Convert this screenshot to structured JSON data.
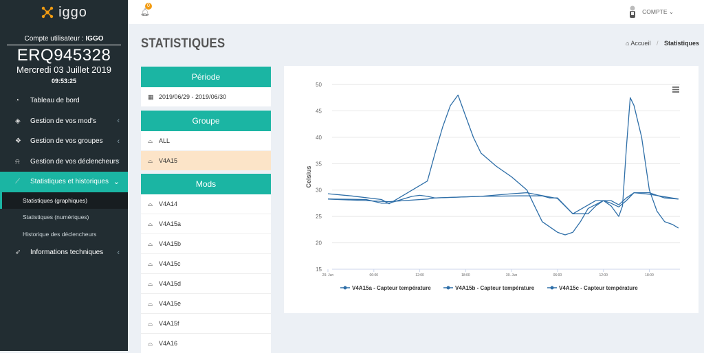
{
  "brand": {
    "name": "iggo"
  },
  "user": {
    "label": "Compte utilisateur : ",
    "name": "IGGO",
    "device": "ERQ945328",
    "date": "Mercredi 03 Juillet 2019",
    "time": "09:53:25"
  },
  "menu": [
    {
      "label": "Tableau de bord",
      "icon": "dashboard-icon"
    },
    {
      "label": "Gestion de vos mod's",
      "icon": "cube-icon"
    },
    {
      "label": "Gestion de vos groupes",
      "icon": "cubes-icon"
    },
    {
      "label": "Gestion de vos déclencheurs",
      "icon": "bell-icon"
    },
    {
      "label": "Statistiques et historiques",
      "icon": "line-chart-icon"
    },
    {
      "label": "Informations techniques",
      "icon": "rocket-icon"
    }
  ],
  "submenu": [
    {
      "label": "Statistiques (graphiques)"
    },
    {
      "label": "Statistiques (numériques)"
    },
    {
      "label": "Historique des déclencheurs"
    }
  ],
  "topbar": {
    "notification_count": "0",
    "account_label": "COMPTE"
  },
  "page": {
    "title": "STATISTIQUES"
  },
  "breadcrumb": {
    "home": "Accueil",
    "current": "Statistiques"
  },
  "periode": {
    "header": "Période",
    "range": "2019/06/29 - 2019/06/30"
  },
  "groupe": {
    "header": "Groupe",
    "items": [
      "ALL",
      "V4A15"
    ]
  },
  "mods": {
    "header": "Mods",
    "items": [
      "V4A14",
      "V4A15a",
      "V4A15b",
      "V4A15c",
      "V4A15d",
      "V4A15e",
      "V4A15f",
      "V4A16"
    ]
  },
  "colors": {
    "accent": "#1bb5a3",
    "sidebar": "#222d32",
    "selected_row": "#fce4c8",
    "series": "#2f6fa8"
  },
  "chart_data": {
    "type": "line",
    "ylabel": "Celsius",
    "ylim": [
      15,
      50
    ],
    "yticks": [
      15,
      20,
      25,
      30,
      35,
      40,
      45,
      50
    ],
    "xlim": [
      0,
      46
    ],
    "xticks": [
      {
        "x": 0,
        "label": "29. Jun"
      },
      {
        "x": 6,
        "label": "06:00"
      },
      {
        "x": 12,
        "label": "12:00"
      },
      {
        "x": 18,
        "label": "18:00"
      },
      {
        "x": 24,
        "label": "30. Jun"
      },
      {
        "x": 30,
        "label": "06:00"
      },
      {
        "x": 36,
        "label": "12:00"
      },
      {
        "x": 42,
        "label": "18:00"
      }
    ],
    "grid": true,
    "legend": "bottom",
    "series": [
      {
        "name": "V4A15a - Capteur température",
        "x": [
          0,
          3,
          7,
          8,
          13,
          14,
          15,
          16,
          17,
          18,
          19,
          20,
          22,
          24,
          26,
          27,
          28,
          30,
          31,
          32,
          33,
          34,
          36,
          37,
          38,
          38.5,
          39,
          39.5,
          40,
          41,
          42,
          43,
          44,
          45,
          45.8
        ],
        "y": [
          29.3,
          28.9,
          28.2,
          27.4,
          31.7,
          37,
          42,
          46,
          48,
          44,
          40,
          37,
          34.5,
          32.5,
          30,
          27,
          24,
          22,
          21.5,
          22,
          24,
          26.5,
          28,
          27,
          25,
          27,
          38,
          47.5,
          46,
          40,
          30,
          26,
          24,
          23.5,
          22.8
        ]
      },
      {
        "name": "V4A15b - Capteur température",
        "x": [
          0,
          5,
          7,
          8,
          11,
          12,
          13,
          14,
          20,
          24,
          26,
          30,
          32,
          34,
          35,
          36,
          37,
          38,
          39,
          40,
          42,
          44,
          45.8
        ],
        "y": [
          28.3,
          28.2,
          27.5,
          27.5,
          28.8,
          29,
          28.8,
          28.5,
          28.8,
          29.3,
          29.5,
          28.4,
          25.5,
          25.5,
          27,
          28,
          27.5,
          26.8,
          28,
          29.5,
          29.5,
          28.5,
          28.3
        ]
      },
      {
        "name": "V4A15c - Capteur température",
        "x": [
          0,
          8,
          13,
          14,
          20,
          25,
          28,
          29,
          30,
          32,
          35,
          37,
          38,
          39,
          40,
          42,
          45.8
        ],
        "y": [
          28.3,
          27.8,
          28.3,
          28.5,
          28.8,
          28.9,
          28.9,
          28.5,
          28.5,
          25.5,
          28,
          28,
          27.2,
          28.5,
          29.5,
          29.2,
          28.3
        ]
      }
    ]
  }
}
